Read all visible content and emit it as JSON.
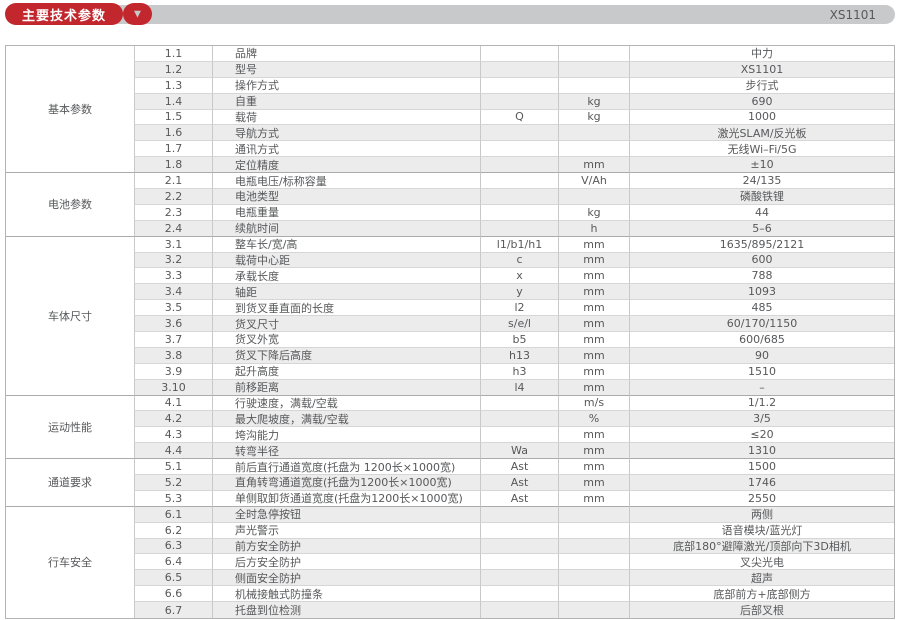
{
  "header": {
    "title": "主要技术参数",
    "dropdown_icon": "▼",
    "model": "XS1101",
    "accent_color": "#c1272d",
    "bar_color": "#c8c9ca"
  },
  "table": {
    "sections": [
      {
        "label": "基本参数",
        "rows": [
          {
            "no": "1.1",
            "name": "品牌",
            "symbol": "",
            "unit": "",
            "value": "中力"
          },
          {
            "no": "1.2",
            "name": "型号",
            "symbol": "",
            "unit": "",
            "value": "XS1101"
          },
          {
            "no": "1.3",
            "name": "操作方式",
            "symbol": "",
            "unit": "",
            "value": "步行式"
          },
          {
            "no": "1.4",
            "name": "自重",
            "symbol": "",
            "unit": "kg",
            "value": "690"
          },
          {
            "no": "1.5",
            "name": "载荷",
            "symbol": "Q",
            "unit": "kg",
            "value": "1000"
          },
          {
            "no": "1.6",
            "name": "导航方式",
            "symbol": "",
            "unit": "",
            "value": "激光SLAM/反光板"
          },
          {
            "no": "1.7",
            "name": "通讯方式",
            "symbol": "",
            "unit": "",
            "value": "无线Wi–Fi/5G"
          },
          {
            "no": "1.8",
            "name": "定位精度",
            "symbol": "",
            "unit": "mm",
            "value": "±10"
          }
        ]
      },
      {
        "label": "电池参数",
        "rows": [
          {
            "no": "2.1",
            "name": "电瓶电压/标称容量",
            "symbol": "",
            "unit": "V/Ah",
            "value": "24/135"
          },
          {
            "no": "2.2",
            "name": "电池类型",
            "symbol": "",
            "unit": "",
            "value": "磷酸铁锂"
          },
          {
            "no": "2.3",
            "name": "电瓶重量",
            "symbol": "",
            "unit": "kg",
            "value": "44"
          },
          {
            "no": "2.4",
            "name": "续航时间",
            "symbol": "",
            "unit": "h",
            "value": "5–6"
          }
        ]
      },
      {
        "label": "车体尺寸",
        "rows": [
          {
            "no": "3.1",
            "name": "整车长/宽/高",
            "symbol": "l1/b1/h1",
            "unit": "mm",
            "value": "1635/895/2121"
          },
          {
            "no": "3.2",
            "name": "载荷中心距",
            "symbol": "c",
            "unit": "mm",
            "value": "600"
          },
          {
            "no": "3.3",
            "name": "承载长度",
            "symbol": "x",
            "unit": "mm",
            "value": "788"
          },
          {
            "no": "3.4",
            "name": "轴距",
            "symbol": "y",
            "unit": "mm",
            "value": "1093"
          },
          {
            "no": "3.5",
            "name": "到货叉垂直面的长度",
            "symbol": "l2",
            "unit": "mm",
            "value": "485"
          },
          {
            "no": "3.6",
            "name": "货叉尺寸",
            "symbol": "s/e/l",
            "unit": "mm",
            "value": "60/170/1150"
          },
          {
            "no": "3.7",
            "name": "货叉外宽",
            "symbol": "b5",
            "unit": "mm",
            "value": "600/685"
          },
          {
            "no": "3.8",
            "name": "货叉下降后高度",
            "symbol": "h13",
            "unit": "mm",
            "value": "90"
          },
          {
            "no": "3.9",
            "name": "起升高度",
            "symbol": "h3",
            "unit": "mm",
            "value": "1510"
          },
          {
            "no": "3.10",
            "name": "前移距离",
            "symbol": "l4",
            "unit": "mm",
            "value": "–"
          }
        ]
      },
      {
        "label": "运动性能",
        "rows": [
          {
            "no": "4.1",
            "name": "行驶速度，满载/空载",
            "symbol": "",
            "unit": "m/s",
            "value": "1/1.2"
          },
          {
            "no": "4.2",
            "name": "最大爬坡度，满载/空载",
            "symbol": "",
            "unit": "%",
            "value": "3/5"
          },
          {
            "no": "4.3",
            "name": "垮沟能力",
            "symbol": "",
            "unit": "mm",
            "value": "≤20"
          },
          {
            "no": "4.4",
            "name": "转弯半径",
            "symbol": "Wa",
            "unit": "mm",
            "value": "1310"
          }
        ]
      },
      {
        "label": "通道要求",
        "rows": [
          {
            "no": "5.1",
            "name": "前后直行通道宽度(托盘为 1200长×1000宽)",
            "symbol": "Ast",
            "unit": "mm",
            "value": "1500"
          },
          {
            "no": "5.2",
            "name": "直角转弯通道宽度(托盘为1200长×1000宽)",
            "symbol": "Ast",
            "unit": "mm",
            "value": "1746"
          },
          {
            "no": "5.3",
            "name": "单侧取卸货通道宽度(托盘为1200长×1000宽)",
            "symbol": "Ast",
            "unit": "mm",
            "value": "2550"
          }
        ]
      },
      {
        "label": "行车安全",
        "rows": [
          {
            "no": "6.1",
            "name": "全时急停按钮",
            "symbol": "",
            "unit": "",
            "value": "两侧"
          },
          {
            "no": "6.2",
            "name": "声光警示",
            "symbol": "",
            "unit": "",
            "value": "语音模块/蓝光灯"
          },
          {
            "no": "6.3",
            "name": "前方安全防护",
            "symbol": "",
            "unit": "",
            "value": "底部180°避障激光/顶部向下3D相机"
          },
          {
            "no": "6.4",
            "name": "后方安全防护",
            "symbol": "",
            "unit": "",
            "value": "叉尖光电"
          },
          {
            "no": "6.5",
            "name": "侧面安全防护",
            "symbol": "",
            "unit": "",
            "value": "超声"
          },
          {
            "no": "6.6",
            "name": "机械接触式防撞条",
            "symbol": "",
            "unit": "",
            "value": "底部前方+底部侧方"
          },
          {
            "no": "6.7",
            "name": "托盘到位检测",
            "symbol": "",
            "unit": "",
            "value": "后部叉根"
          }
        ]
      }
    ]
  }
}
